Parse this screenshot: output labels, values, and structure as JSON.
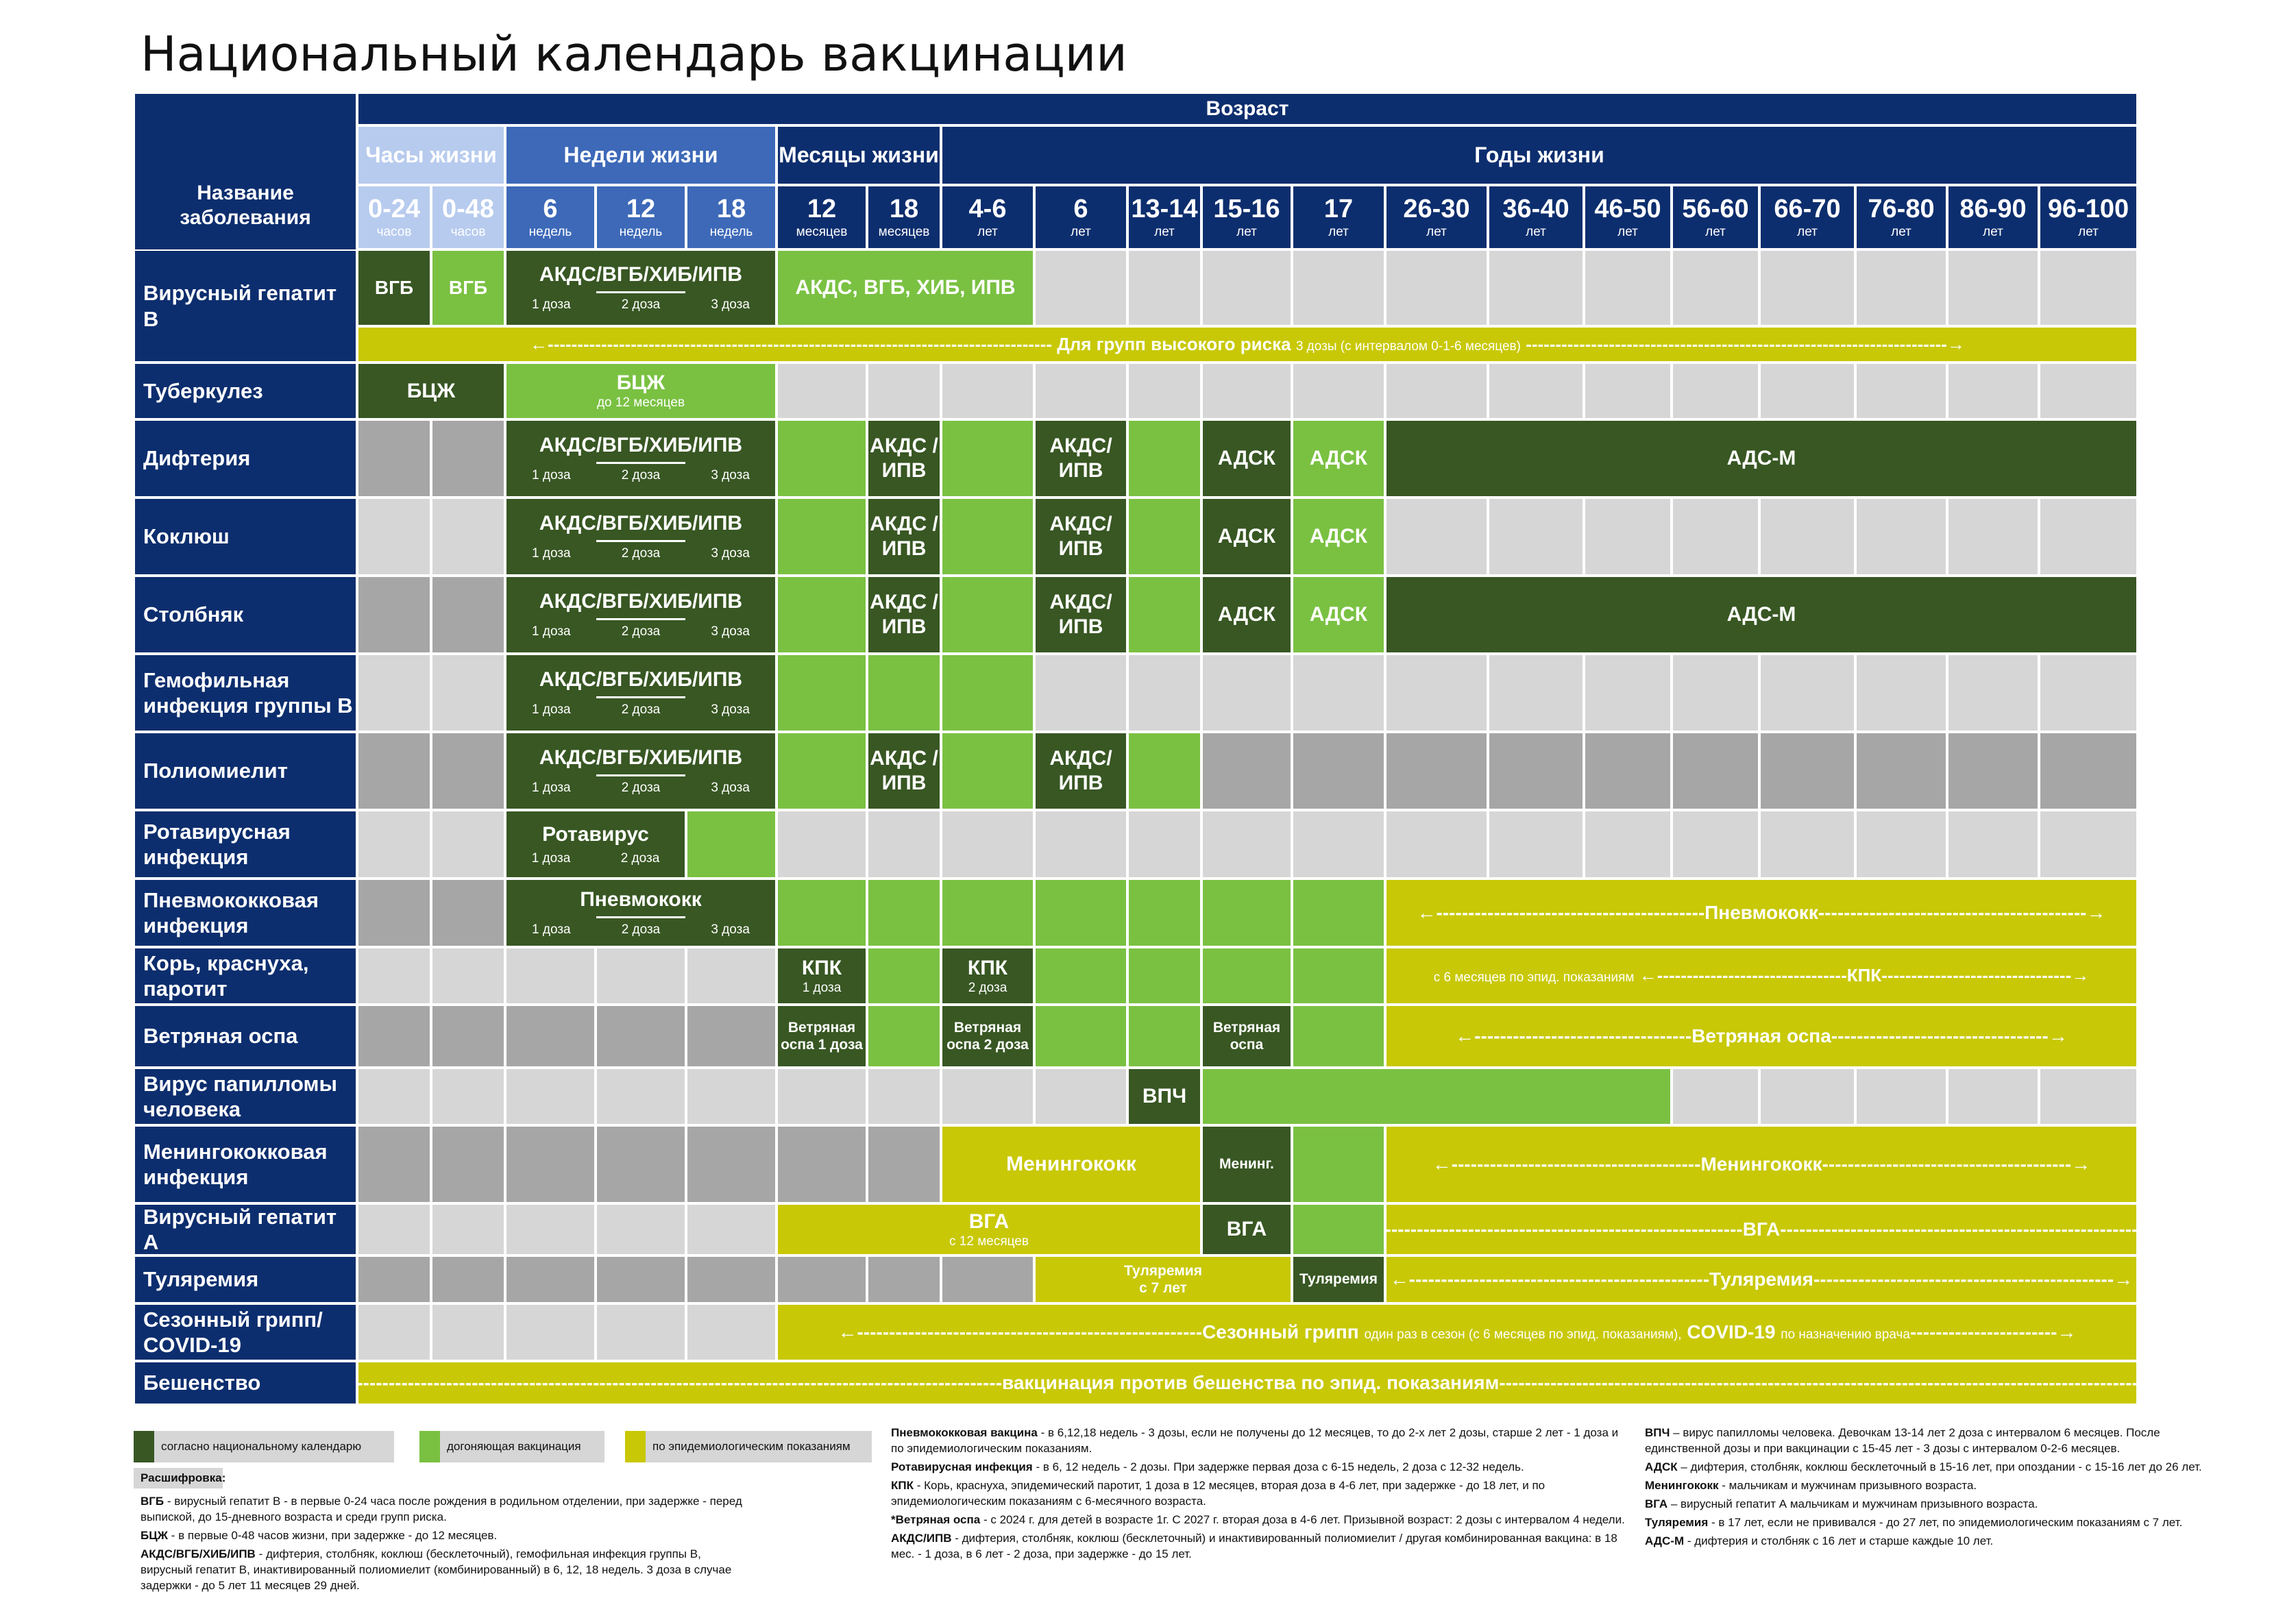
{
  "title": "Национальный календарь вакцинации",
  "header": {
    "disease_col": "Название заболевания",
    "age": "Возраст",
    "groups": {
      "hours": "Часы жизни",
      "weeks": "Недели жизни",
      "months": "Месяцы жизни",
      "years": "Годы жизни"
    },
    "ages": [
      {
        "v": "0-24",
        "u": "часов"
      },
      {
        "v": "0-48",
        "u": "часов"
      },
      {
        "v": "6",
        "u": "недель"
      },
      {
        "v": "12",
        "u": "недель"
      },
      {
        "v": "18",
        "u": "недель"
      },
      {
        "v": "12",
        "u": "месяцев"
      },
      {
        "v": "18",
        "u": "месяцев"
      },
      {
        "v": "4-6",
        "u": "лет"
      },
      {
        "v": "6",
        "u": "лет"
      },
      {
        "v": "13-14",
        "u": "лет"
      },
      {
        "v": "15-16",
        "u": "лет"
      },
      {
        "v": "17",
        "u": "лет"
      },
      {
        "v": "26-30",
        "u": "лет"
      },
      {
        "v": "36-40",
        "u": "лет"
      },
      {
        "v": "46-50",
        "u": "лет"
      },
      {
        "v": "56-60",
        "u": "лет"
      },
      {
        "v": "66-70",
        "u": "лет"
      },
      {
        "v": "76-80",
        "u": "лет"
      },
      {
        "v": "86-90",
        "u": "лет"
      },
      {
        "v": "96-100",
        "u": "лет"
      }
    ]
  },
  "rows": [
    "Вирусный гепатит В",
    "Туберкулез",
    "Дифтерия",
    "Коклюш",
    "Столбняк",
    "Гемофильная инфекция группы В",
    "Полиомиелит",
    "Ротавирусная инфекция",
    "Пневмококковая инфекция",
    "Корь, краснуха, паротит",
    "Ветряная оспа",
    "Вирус папилломы человека",
    "Менингококковая инфекция",
    "Вирусный гепатит А",
    "Туляремия",
    "Сезонный грипп/ COVID-19",
    "Бешенство"
  ],
  "cells": {
    "vgb": "ВГБ",
    "akds_vgb": "АКДС/ВГБ/ХИБ/ИПВ",
    "akds_vgb_hib": "АКДС, ВГБ, ХИБ, ИПВ",
    "doses": [
      "1 доза",
      "2 доза",
      "3 доза"
    ],
    "doses2": [
      "1 доза",
      "2 доза"
    ],
    "hb_risk_main": "Для групп высокого риска",
    "hb_risk_note": "3 дозы (с интервалом 0-1-6 месяцев)",
    "bcg": "БЦЖ",
    "bcg_note": "до 12 месяцев",
    "akds_ipv": "АКДС /ИПВ",
    "akds_ipv6": "АКДС/ ИПВ",
    "adsk": "АДСК",
    "adsm": "АДС-М",
    "rota": "Ротавирус",
    "pneumo": "Пневмококк",
    "pneumo_arrow": "Пневмококк",
    "kpk": "КПК",
    "kpk_d1": "1 доза",
    "kpk_d2": "2 доза",
    "kpk_arrow_note": "с 6 месяцев по эпид. показаниям",
    "kpk_arrow": "КПК",
    "varicella1": "Ветряная оспа 1 доза",
    "varicella2": "Ветряная оспа 2 доза",
    "varicella": "Ветряная оспа",
    "varicella_arrow": "Ветряная оспа",
    "hpv": "ВПЧ",
    "mening": "Менингококк",
    "mening_short": "Менинг.",
    "mening_arrow": "Менингококк",
    "vga": "ВГА",
    "vga_note": "с 12 месяцев",
    "vga_arrow": "ВГА",
    "tul": "Туляремия",
    "tul_note": "с 7 лет",
    "tul_arrow": "Туляремия",
    "flu_main": "Сезонный грипп",
    "flu_note": "один раз в сезон (с 6 месяцев по эпид. показаниям),",
    "flu_covid": "COVID-19",
    "flu_covid_note": "по назначению врача",
    "rabies": "вакцинация против бешенства по эпид. показаниям"
  },
  "legend": {
    "national": "согласно национальному календарю",
    "catchup": "догоняющая вакцинация",
    "epid": "по эпидемиологическим показаниям",
    "decode": "Расшифровка:",
    "col1": [
      {
        "k": "ВГБ",
        "t": " - вирусный гепатит В - в первые 0-24 часа после рождения в родильном отделении, при задержке - перед выпиской, до 15-дневного возраста и среди групп риска."
      },
      {
        "k": "БЦЖ",
        "t": " - в первые 0-48 часов жизни, при задержке - до 12 месяцев."
      },
      {
        "k": "АКДС/ВГБ/ХИБ/ИПВ",
        "t": " - дифтерия, столбняк, коклюш (бесклеточный), гемофильная инфекция группы В, вирусный гепатит В, инактивированный полиомиелит (комбинированный) в 6, 12, 18 недель. 3 доза в случае задержки - до 5 лет 11 месяцев 29 дней."
      }
    ],
    "col2": [
      {
        "k": "Пневмококковая вакцина",
        "t": " - в 6,12,18 недель - 3 дозы, если не получены до 12 месяцев, то до 2-х лет 2 дозы, старше 2 лет - 1 доза и по эпидемиологическим показаниям."
      },
      {
        "k": "Ротавирусная инфекция",
        "t": " - в 6, 12 недель - 2 дозы. При задержке первая доза с 6-15 недель, 2 доза с 12-32 недель."
      },
      {
        "k": "КПК",
        "t": " - Корь, краснуха, эпидемический паротит, 1 доза в 12 месяцев, вторая доза в 4-6 лет, при задержке - до 18 лет, и по эпидемиологическим показаниям с 6-месячного возраста."
      },
      {
        "k": "*Ветряная оспа",
        "t": " - с 2024 г. для детей в возрасте 1г. С 2027 г. вторая доза в 4-6 лет. Призывной возраст: 2 дозы с интервалом 4 недели."
      },
      {
        "k": "АКДС/ИПВ",
        "t": " - дифтерия, столбняк, коклюш (бесклеточный) и инактивированный полиомиелит / другая комбинированная вакцина: в 18 мес. - 1 доза, в 6 лет - 2 доза, при задержке - до 15 лет."
      }
    ],
    "col3": [
      {
        "k": "ВПЧ",
        "t": " – вирус папилломы человека. Девочкам 13-14 лет 2 доза с интервалом 6 месяцев. После единственной дозы и при вакцинации с 15-45 лет - 3 дозы с интервалом 0-2-6 месяцев."
      },
      {
        "k": "АДСК",
        "t": " – дифтерия, столбняк, коклюш бесклеточный в 15-16 лет, при опоздании - с 15-16 лет до 26 лет."
      },
      {
        "k": "Менингококк",
        "t": " - мальчикам и мужчинам призывного возраста."
      },
      {
        "k": "ВГА",
        "t": " – вирусный гепатит А мальчикам и мужчинам призывного возраста."
      },
      {
        "k": "Туляремия",
        "t": " - в 17 лет, если не прививался - до 27 лет, по эпидемиологическим показаниям с 7 лет."
      },
      {
        "k": "АДС-М",
        "t": " - дифтерия и столбняк с 16 лет и старше каждые 10 лет."
      }
    ]
  }
}
